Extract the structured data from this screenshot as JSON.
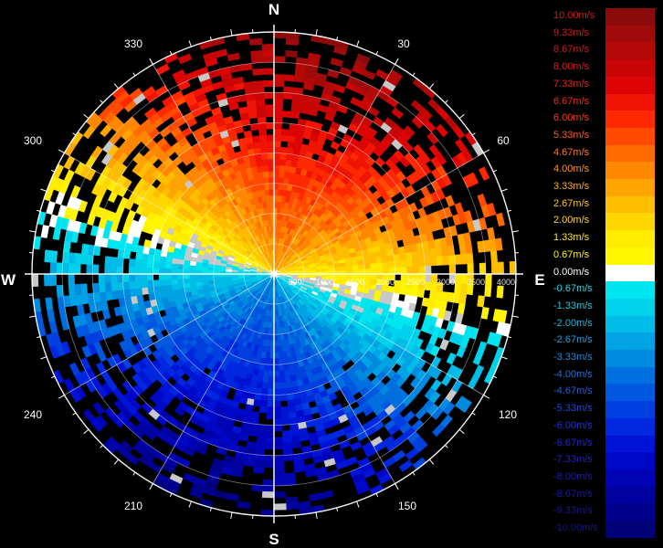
{
  "chart_data": {
    "type": "heatmap",
    "projection": "polar",
    "compass": {
      "north": "N",
      "east": "E",
      "south": "S",
      "west": "W"
    },
    "angle_labels": [
      "30",
      "60",
      "120",
      "150",
      "210",
      "240",
      "300",
      "330"
    ],
    "range_labels": [
      "500",
      "1000",
      "1500",
      "2000",
      "2500",
      "3000",
      "3500",
      "4000"
    ],
    "range_max": 4000,
    "grid": true,
    "legend": {
      "placement": "right",
      "entries": [
        {
          "label": "10.00m/s",
          "color": "#8b0a0a",
          "text_color": "#cc1e1e"
        },
        {
          "label": "9.33m/s",
          "color": "#a00a0a",
          "text_color": "#cc1e1e"
        },
        {
          "label": "8.67m/s",
          "color": "#b40808",
          "text_color": "#cc1e1e"
        },
        {
          "label": "8.00m/s",
          "color": "#c80606",
          "text_color": "#d82020"
        },
        {
          "label": "7.33m/s",
          "color": "#dc0404",
          "text_color": "#e02222"
        },
        {
          "label": "6.67m/s",
          "color": "#f01404",
          "text_color": "#f02a1a"
        },
        {
          "label": "6.00m/s",
          "color": "#ff2800",
          "text_color": "#ff3a1a"
        },
        {
          "label": "5.33m/s",
          "color": "#ff4a00",
          "text_color": "#ff5a1a"
        },
        {
          "label": "4.67m/s",
          "color": "#ff6a00",
          "text_color": "#ff7a1a"
        },
        {
          "label": "4.00m/s",
          "color": "#ff8800",
          "text_color": "#ff961a"
        },
        {
          "label": "3.33m/s",
          "color": "#ffa400",
          "text_color": "#ffae1a"
        },
        {
          "label": "2.67m/s",
          "color": "#ffbe00",
          "text_color": "#ffc41a"
        },
        {
          "label": "2.00m/s",
          "color": "#ffd600",
          "text_color": "#ffd81a"
        },
        {
          "label": "1.33m/s",
          "color": "#ffec00",
          "text_color": "#ffe81a"
        },
        {
          "label": "0.67m/s",
          "color": "#fff600",
          "text_color": "#fff21a"
        },
        {
          "label": "0.00m/s",
          "color": "#ffffff",
          "text_color": "#ffffff"
        },
        {
          "label": "-0.67m/s",
          "color": "#00e6f0",
          "text_color": "#20d8e6"
        },
        {
          "label": "-1.33m/s",
          "color": "#00d2ec",
          "text_color": "#20c8e0"
        },
        {
          "label": "-2.00m/s",
          "color": "#00bce8",
          "text_color": "#20b4dc"
        },
        {
          "label": "-2.67m/s",
          "color": "#00a4e4",
          "text_color": "#209edc"
        },
        {
          "label": "-3.33m/s",
          "color": "#008ae0",
          "text_color": "#2088dc"
        },
        {
          "label": "-4.00m/s",
          "color": "#0070e0",
          "text_color": "#2072dc"
        },
        {
          "label": "-4.67m/s",
          "color": "#0058e0",
          "text_color": "#205cdc"
        },
        {
          "label": "-5.33m/s",
          "color": "#0040e0",
          "text_color": "#2048dc"
        },
        {
          "label": "-6.00m/s",
          "color": "#0028e0",
          "text_color": "#2034dc"
        },
        {
          "label": "-6.67m/s",
          "color": "#0014d8",
          "text_color": "#2026d0"
        },
        {
          "label": "-7.33m/s",
          "color": "#0008c8",
          "text_color": "#2020c0"
        },
        {
          "label": "-8.00m/s",
          "color": "#0004b4",
          "text_color": "#1e1eb0"
        },
        {
          "label": "-8.67m/s",
          "color": "#0002a0",
          "text_color": "#1c1ca0"
        },
        {
          "label": "-9.33m/s",
          "color": "#00008c",
          "text_color": "#1a1a90"
        },
        {
          "label": "-10.00m/s",
          "color": "#000078",
          "text_color": "#181880"
        }
      ]
    },
    "colors": {
      "background": "#000000",
      "grid": "#ffffff",
      "no_data": "#c8c8c8"
    }
  }
}
